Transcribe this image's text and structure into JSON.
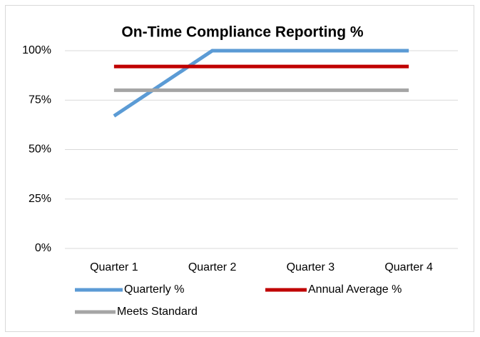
{
  "chart_data": {
    "type": "line",
    "title": "On-Time Compliance Reporting %",
    "categories": [
      "Quarter 1",
      "Quarter 2",
      "Quarter 3",
      "Quarter 4"
    ],
    "series": [
      {
        "name": "Quarterly %",
        "color": "#5b9bd5",
        "values": [
          67,
          100,
          100,
          100
        ]
      },
      {
        "name": "Annual Average %",
        "color": "#c00000",
        "values": [
          92,
          92,
          92,
          92
        ]
      },
      {
        "name": "Meets Standard",
        "color": "#a5a5a5",
        "values": [
          80,
          80,
          80,
          80
        ]
      }
    ],
    "ylim": [
      0,
      100
    ],
    "yticks": [
      {
        "value": 0,
        "label": "0%"
      },
      {
        "value": 25,
        "label": "25%"
      },
      {
        "value": 50,
        "label": "50%"
      },
      {
        "value": 75,
        "label": "75%"
      },
      {
        "value": 100,
        "label": "100%"
      }
    ],
    "grid": true,
    "legend": "bottom"
  }
}
